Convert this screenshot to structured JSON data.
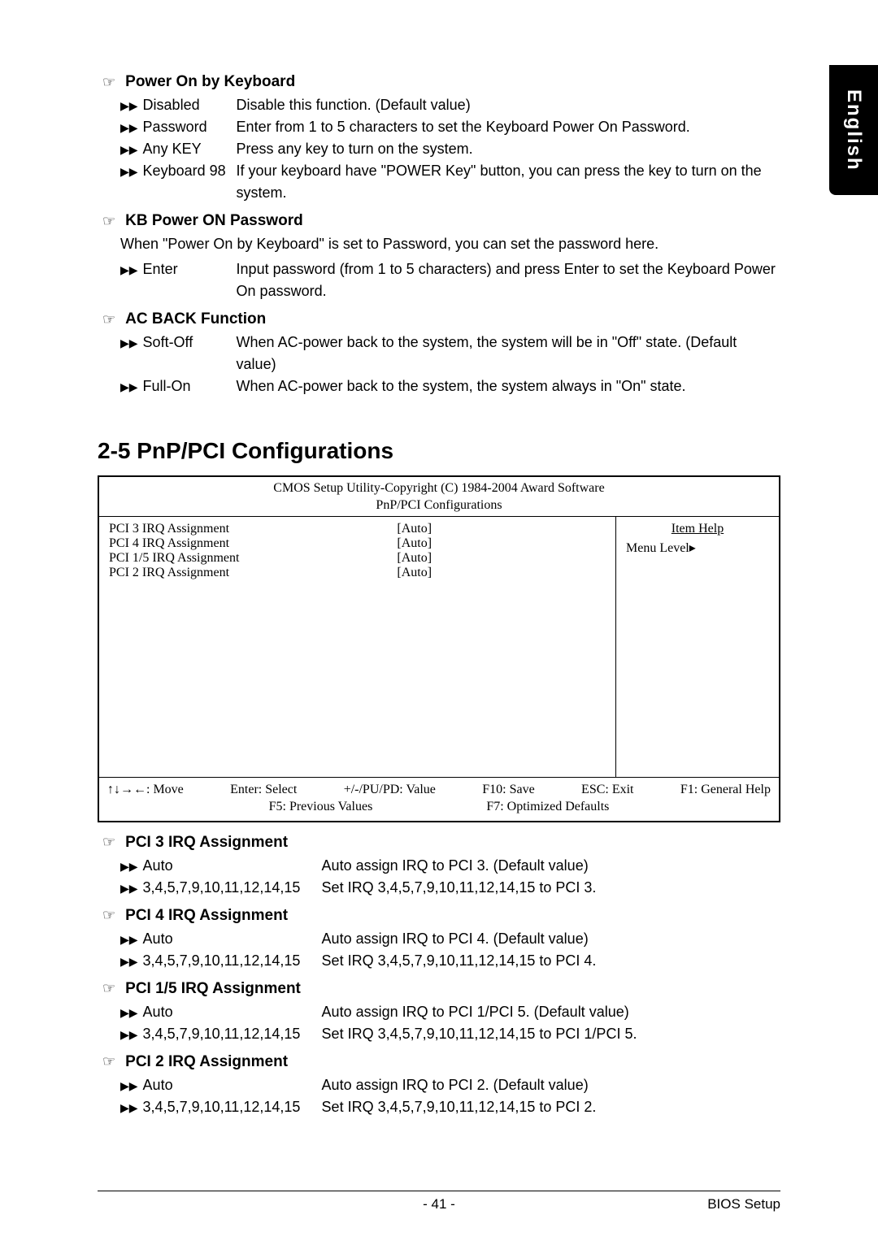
{
  "side_tab": "English",
  "options": [
    {
      "title": "Power On by Keyboard",
      "rows": [
        {
          "label": "Disabled",
          "desc": "Disable this function. (Default value)"
        },
        {
          "label": "Password",
          "desc": "Enter from 1 to 5 characters to set the Keyboard Power On Password."
        },
        {
          "label": "Any KEY",
          "desc": "Press any key to turn on the system."
        },
        {
          "label": "Keyboard 98",
          "desc": "If your keyboard have \"POWER Key\" button, you can press the key to turn on the system."
        }
      ]
    },
    {
      "title": "KB Power ON Password",
      "note": "When \"Power On by Keyboard\" is set to Password, you can set the password here.",
      "rows": [
        {
          "label": "Enter",
          "desc": "Input password (from 1 to 5 characters) and press Enter to set the Keyboard Power On password."
        }
      ]
    },
    {
      "title": "AC BACK Function",
      "rows": [
        {
          "label": "Soft-Off",
          "desc": "When AC-power back to the system, the system will be in \"Off\" state. (Default value)"
        },
        {
          "label": "Full-On",
          "desc": "When AC-power back to the system, the system always in \"On\" state."
        }
      ]
    }
  ],
  "section_heading": "2-5    PnP/PCI Configurations",
  "bios": {
    "header_line1": "CMOS Setup Utility-Copyright (C) 1984-2004 Award Software",
    "header_line2": "PnP/PCI Configurations",
    "rows": [
      {
        "label": "PCI 3 IRQ Assignment",
        "val": "[Auto]"
      },
      {
        "label": "PCI 4 IRQ Assignment",
        "val": "[Auto]"
      },
      {
        "label": "PCI 1/5 IRQ Assignment",
        "val": "[Auto]"
      },
      {
        "label": "PCI 2 IRQ Assignment",
        "val": "[Auto]"
      }
    ],
    "right_title": "Item Help",
    "right_sub": "Menu Level▸",
    "footer_r1": {
      "c1": "↑↓→←: Move",
      "c2": "Enter: Select",
      "c3": "+/-/PU/PD: Value",
      "c4": "F10: Save",
      "c5": "ESC: Exit",
      "c6": "F1: General Help"
    },
    "footer_r2": {
      "c1": "F5: Previous Values",
      "c2": "F7: Optimized Defaults"
    }
  },
  "pci_options": [
    {
      "title": "PCI 3 IRQ Assignment",
      "rows": [
        {
          "label": "Auto",
          "desc": "Auto assign IRQ to PCI 3. (Default value)"
        },
        {
          "label": "3,4,5,7,9,10,11,12,14,15",
          "desc": "Set IRQ 3,4,5,7,9,10,11,12,14,15 to PCI 3."
        }
      ]
    },
    {
      "title": "PCI 4 IRQ Assignment",
      "rows": [
        {
          "label": "Auto",
          "desc": "Auto assign IRQ to PCI 4. (Default value)"
        },
        {
          "label": "3,4,5,7,9,10,11,12,14,15",
          "desc": "Set IRQ 3,4,5,7,9,10,11,12,14,15 to PCI 4."
        }
      ]
    },
    {
      "title": "PCI 1/5 IRQ Assignment",
      "rows": [
        {
          "label": "Auto",
          "desc": "Auto assign IRQ to PCI 1/PCI 5. (Default value)"
        },
        {
          "label": "3,4,5,7,9,10,11,12,14,15",
          "desc": "Set IRQ 3,4,5,7,9,10,11,12,14,15 to PCI 1/PCI 5."
        }
      ]
    },
    {
      "title": "PCI 2 IRQ Assignment",
      "rows": [
        {
          "label": "Auto",
          "desc": "Auto assign IRQ to PCI 2. (Default value)"
        },
        {
          "label": "3,4,5,7,9,10,11,12,14,15",
          "desc": "Set IRQ 3,4,5,7,9,10,11,12,14,15 to PCI 2."
        }
      ]
    }
  ],
  "footer": {
    "page": "- 41 -",
    "right": "BIOS Setup"
  }
}
